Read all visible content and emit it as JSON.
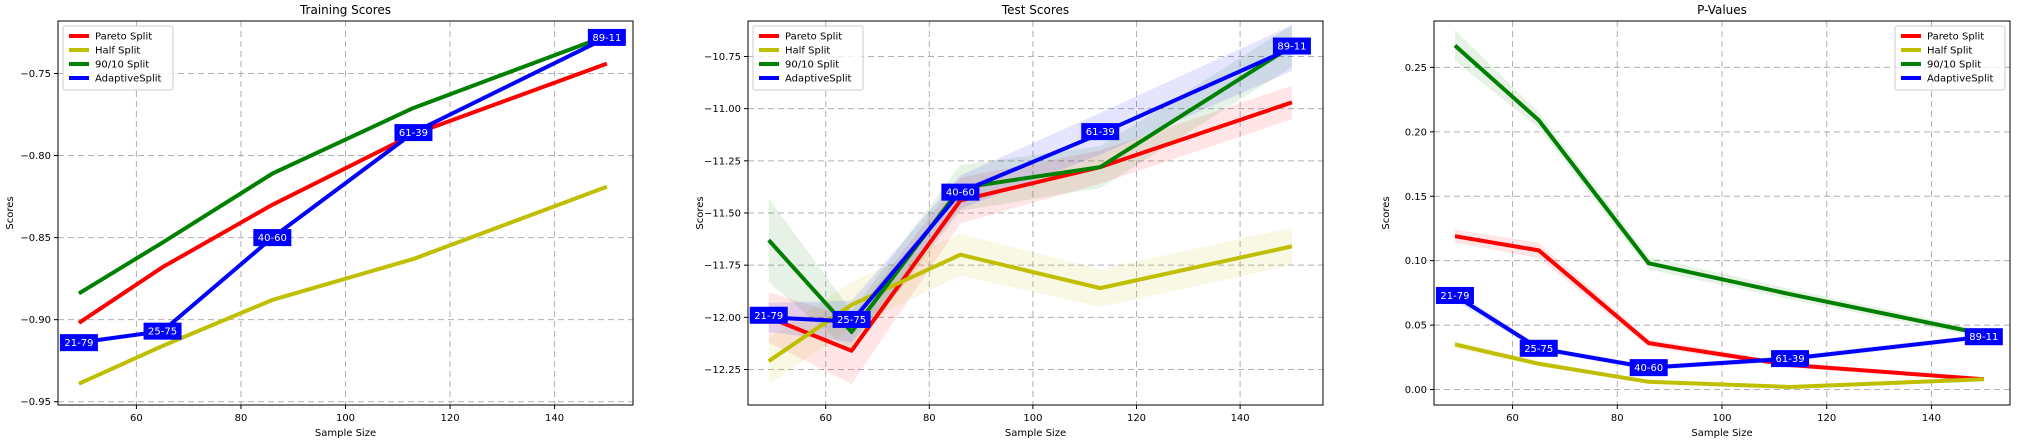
{
  "colors": {
    "pareto": "#ff0000",
    "half": "#bfbf00",
    "ninety": "#008000",
    "adaptive": "#0000ff",
    "annotation_box": "#0000ff",
    "annotation_text": "#ffffff",
    "grid": "#b0b0b0"
  },
  "chart_data": [
    {
      "type": "line",
      "title": "Training Scores",
      "xlabel": "Sample Size",
      "ylabel": "Scores",
      "xlim": [
        45,
        155
      ],
      "ylim": [
        -0.952,
        -0.718
      ],
      "xticks": [
        60,
        80,
        100,
        120,
        140
      ],
      "xtick_labels": [
        "60",
        "80",
        "100",
        "120",
        "140"
      ],
      "yticks": [
        -0.95,
        -0.9,
        -0.85,
        -0.8,
        -0.75
      ],
      "ytick_labels": [
        "−0.95",
        "−0.90",
        "−0.85",
        "−0.80",
        "−0.75"
      ],
      "grid": true,
      "legend_position": "top-left",
      "series": [
        {
          "name": "Pareto Split",
          "color_key": "pareto",
          "x": [
            49,
            65,
            86,
            113,
            150
          ],
          "y": [
            -0.902,
            -0.868,
            -0.83,
            -0.787,
            -0.744
          ]
        },
        {
          "name": "Half Split",
          "color_key": "half",
          "x": [
            49,
            65,
            86,
            113,
            150
          ],
          "y": [
            -0.939,
            -0.916,
            -0.888,
            -0.863,
            -0.819
          ]
        },
        {
          "name": "90/10 Split",
          "color_key": "ninety",
          "x": [
            49,
            65,
            86,
            113,
            150
          ],
          "y": [
            -0.884,
            -0.853,
            -0.811,
            -0.771,
            -0.727
          ]
        },
        {
          "name": "AdaptiveSplit",
          "color_key": "adaptive",
          "x": [
            49,
            65,
            86,
            113,
            150
          ],
          "y": [
            -0.914,
            -0.907,
            -0.85,
            -0.786,
            -0.728
          ]
        }
      ],
      "annotations": [
        {
          "text": "21-79",
          "x": 49,
          "y": -0.914
        },
        {
          "text": "25-75",
          "x": 65,
          "y": -0.907
        },
        {
          "text": "40-60",
          "x": 86,
          "y": -0.85
        },
        {
          "text": "61-39",
          "x": 113,
          "y": -0.786
        },
        {
          "text": "89-11",
          "x": 150,
          "y": -0.728
        }
      ]
    },
    {
      "type": "line",
      "title": "Test Scores",
      "xlabel": "Sample Size",
      "ylabel": "Scores",
      "xlim": [
        45,
        156
      ],
      "ylim": [
        -12.42,
        -10.58
      ],
      "xticks": [
        60,
        80,
        100,
        120,
        140
      ],
      "xtick_labels": [
        "60",
        "80",
        "100",
        "120",
        "140"
      ],
      "yticks": [
        -12.25,
        -12.0,
        -11.75,
        -11.5,
        -11.25,
        -11.0,
        -10.75
      ],
      "ytick_labels": [
        "−12.25",
        "−12.00",
        "−11.75",
        "−11.50",
        "−11.25",
        "−11.00",
        "−10.75"
      ],
      "grid": true,
      "legend_position": "top-left",
      "series": [
        {
          "name": "Pareto Split",
          "color_key": "pareto",
          "x": [
            49,
            65,
            86,
            113,
            150
          ],
          "y": [
            -12.0,
            -12.16,
            -11.44,
            -11.28,
            -10.97
          ],
          "lower": [
            -12.12,
            -12.32,
            -11.55,
            -11.36,
            -11.05
          ],
          "upper": [
            -11.88,
            -12.0,
            -11.33,
            -11.2,
            -10.89
          ]
        },
        {
          "name": "Half Split",
          "color_key": "half",
          "x": [
            49,
            65,
            86,
            113,
            150
          ],
          "y": [
            -12.21,
            -11.94,
            -11.7,
            -11.86,
            -11.66
          ],
          "lower": [
            -12.32,
            -12.05,
            -11.8,
            -11.95,
            -11.75
          ],
          "upper": [
            -12.1,
            -11.83,
            -11.6,
            -11.77,
            -11.57
          ]
        },
        {
          "name": "90/10 Split",
          "color_key": "ninety",
          "x": [
            49,
            65,
            86,
            113,
            150
          ],
          "y": [
            -11.63,
            -12.07,
            -11.38,
            -11.28,
            -10.7
          ],
          "lower": [
            -11.83,
            -12.17,
            -11.49,
            -11.38,
            -10.8
          ],
          "upper": [
            -11.43,
            -11.97,
            -11.27,
            -11.18,
            -10.6
          ]
        },
        {
          "name": "AdaptiveSplit",
          "color_key": "adaptive",
          "x": [
            49,
            65,
            86,
            113,
            150
          ],
          "y": [
            -12.0,
            -12.02,
            -11.4,
            -11.12,
            -10.71
          ],
          "lower": [
            -12.07,
            -12.12,
            -11.48,
            -11.22,
            -10.82
          ],
          "upper": [
            -11.93,
            -11.92,
            -11.32,
            -11.02,
            -10.6
          ]
        }
      ],
      "annotations": [
        {
          "text": "21-79",
          "x": 49,
          "y": -11.99
        },
        {
          "text": "25-75",
          "x": 65,
          "y": -12.01
        },
        {
          "text": "40-60",
          "x": 86,
          "y": -11.4
        },
        {
          "text": "61-39",
          "x": 113,
          "y": -11.11
        },
        {
          "text": "89-11",
          "x": 150,
          "y": -10.7
        }
      ]
    },
    {
      "type": "line",
      "title": "P-Values",
      "xlabel": "Sample Size",
      "ylabel": "Scores",
      "xlim": [
        45,
        155
      ],
      "ylim": [
        -0.012,
        0.286
      ],
      "xticks": [
        60,
        80,
        100,
        120,
        140
      ],
      "xtick_labels": [
        "60",
        "80",
        "100",
        "120",
        "140"
      ],
      "yticks": [
        0.0,
        0.05,
        0.1,
        0.15,
        0.2,
        0.25
      ],
      "ytick_labels": [
        "0.00",
        "0.05",
        "0.10",
        "0.15",
        "0.20",
        "0.25"
      ],
      "grid": true,
      "legend_position": "top-right",
      "series": [
        {
          "name": "Pareto Split",
          "color_key": "pareto",
          "x": [
            49,
            65,
            86,
            113,
            150
          ],
          "y": [
            0.119,
            0.108,
            0.036,
            0.019,
            0.008
          ],
          "lower": [
            0.114,
            0.102,
            0.033,
            0.017,
            0.007
          ],
          "upper": [
            0.124,
            0.114,
            0.039,
            0.021,
            0.009
          ]
        },
        {
          "name": "Half Split",
          "color_key": "half",
          "x": [
            49,
            65,
            86,
            113,
            150
          ],
          "y": [
            0.035,
            0.02,
            0.006,
            0.002,
            0.008
          ],
          "lower": [
            0.032,
            0.018,
            0.005,
            0.001,
            0.007
          ],
          "upper": [
            0.038,
            0.022,
            0.007,
            0.003,
            0.009
          ]
        },
        {
          "name": "90/10 Split",
          "color_key": "ninety",
          "x": [
            49,
            65,
            86,
            113,
            150
          ],
          "y": [
            0.267,
            0.209,
            0.098,
            0.074,
            0.043
          ],
          "lower": [
            0.255,
            0.203,
            0.093,
            0.07,
            0.04
          ],
          "upper": [
            0.279,
            0.215,
            0.103,
            0.078,
            0.046
          ]
        },
        {
          "name": "AdaptiveSplit",
          "color_key": "adaptive",
          "x": [
            49,
            65,
            86,
            113,
            150
          ],
          "y": [
            0.073,
            0.032,
            0.017,
            0.024,
            0.041
          ],
          "lower": [
            0.069,
            0.03,
            0.015,
            0.022,
            0.039
          ],
          "upper": [
            0.077,
            0.034,
            0.019,
            0.026,
            0.043
          ]
        }
      ],
      "annotations": [
        {
          "text": "21-79",
          "x": 49,
          "y": 0.073
        },
        {
          "text": "25-75",
          "x": 65,
          "y": 0.032
        },
        {
          "text": "40-60",
          "x": 86,
          "y": 0.017
        },
        {
          "text": "61-39",
          "x": 113,
          "y": 0.024
        },
        {
          "text": "89-11",
          "x": 150,
          "y": 0.041
        }
      ]
    }
  ]
}
